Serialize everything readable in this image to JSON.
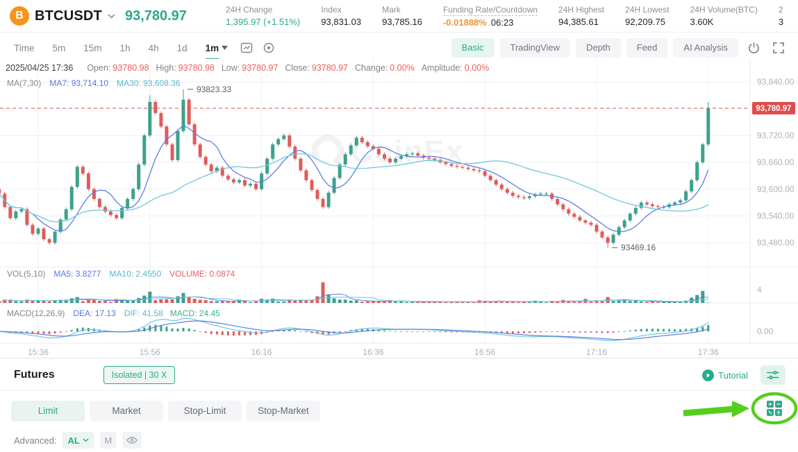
{
  "header": {
    "symbol": "BTCUSDT",
    "price": "93,780.97",
    "stats": [
      {
        "label": "24H Change",
        "value": "1,395.97 (+1.51%)"
      },
      {
        "label": "Index",
        "value": "93,831.03"
      },
      {
        "label": "Mark",
        "value": "93,785.16"
      },
      {
        "label": "Funding Rate/Countdown",
        "rate": "-0.01888%",
        "countdown": "06:23"
      },
      {
        "label": "24H Highest",
        "value": "94,385.61"
      },
      {
        "label": "24H Lowest",
        "value": "92,209.75"
      },
      {
        "label": "24H Volume(BTC)",
        "value": "3.60K"
      },
      {
        "label": "2",
        "value": "3"
      }
    ]
  },
  "toolbar": {
    "intervals": [
      "Time",
      "5m",
      "15m",
      "1h",
      "4h",
      "1d",
      "1m"
    ],
    "active_interval": "1m",
    "views": [
      "Basic",
      "TradingView",
      "Depth",
      "Feed",
      "AI Analysis"
    ],
    "active_view": "Basic"
  },
  "ohlc": {
    "datetime": "2025/04/25 17:36",
    "items": [
      {
        "k": "Open:",
        "v": "93780.98"
      },
      {
        "k": "High:",
        "v": "93780.98"
      },
      {
        "k": "Low:",
        "v": "93780.97"
      },
      {
        "k": "Close:",
        "v": "93780.97"
      },
      {
        "k": "Change:",
        "v": "0.00%"
      },
      {
        "k": "Amplitude:",
        "v": "0.00%"
      }
    ]
  },
  "ma_row": {
    "name": "MA(7,30)",
    "ma7": "MA7: 93,714.10",
    "ma30": "MA30: 93,608.36"
  },
  "vol_row": {
    "name": "VOL(5,10)",
    "ma5": "MA5: 3.8277",
    "ma10": "MA10: 2.4550",
    "vol": "VOLUME: 0.0874"
  },
  "macd_row": {
    "name": "MACD(12,26,9)",
    "dea": "DEA: 17.13",
    "dif": "DIF: 41.58",
    "macd": "MACD: 24.45"
  },
  "chart_data": {
    "type": "candlestick",
    "interval": "1m",
    "x_ticks": [
      "15:36",
      "15:56",
      "16:16",
      "16:36",
      "16:56",
      "17:16",
      "17:36"
    ],
    "price_ticks": [
      "93,840.00",
      "93,720.00",
      "93,660.00",
      "93,600.00",
      "93,540.00",
      "93,480.00"
    ],
    "price_tick_values": [
      93840,
      93720,
      93660,
      93600,
      93540,
      93480
    ],
    "last_price": 93780.97,
    "last_price_label": "93,780.97",
    "high_annotation": {
      "index": 33,
      "price": 93823.33,
      "label": "93823.33"
    },
    "low_annotation": {
      "index": 109,
      "price": 93469.16,
      "label": "93469.16"
    },
    "first_open": 93600,
    "closes": [
      93590,
      93560,
      93535,
      93550,
      93555,
      93520,
      93500,
      93512,
      93488,
      93480,
      93505,
      93532,
      93555,
      93605,
      93650,
      93635,
      93600,
      93578,
      93560,
      93550,
      93542,
      93535,
      93558,
      93578,
      93600,
      93655,
      93720,
      93795,
      93770,
      93740,
      93700,
      93665,
      93730,
      93800,
      93745,
      93700,
      93672,
      93655,
      93640,
      93648,
      93630,
      93622,
      93615,
      93620,
      93608,
      93612,
      93600,
      93635,
      93668,
      93700,
      93712,
      93720,
      93695,
      93668,
      93642,
      93620,
      93598,
      93578,
      93560,
      93592,
      93625,
      93655,
      93678,
      93698,
      93715,
      93705,
      93696,
      93690,
      93678,
      93668,
      93660,
      93668,
      93674,
      93678,
      93680,
      93675,
      93670,
      93668,
      93665,
      93660,
      93656,
      93652,
      93650,
      93648,
      93645,
      93642,
      93640,
      93630,
      93620,
      93610,
      93600,
      93592,
      93585,
      93582,
      93580,
      93584,
      93588,
      93590,
      93590,
      93578,
      93566,
      93555,
      93545,
      93538,
      93530,
      93525,
      93520,
      93505,
      93492,
      93480,
      93498,
      93515,
      93530,
      93545,
      93558,
      93570,
      93566,
      93562,
      93560,
      93560,
      93566,
      93570,
      93575,
      93595,
      93620,
      93660,
      93700,
      93780.97
    ],
    "volume_overrides": {
      "13": 1.4,
      "14": 1.8,
      "21": 1.2,
      "26": 2.2,
      "27": 3.4,
      "33": 3.0,
      "43": 1.0,
      "49": 1.3,
      "57": 2.0,
      "58": 6.2,
      "59": 2.6,
      "60": 1.4,
      "70": 0.9,
      "86": 0.8,
      "96": 0.7,
      "101": 0.9,
      "105": 1.2,
      "109": 1.8,
      "112": 1.1,
      "124": 1.6,
      "125": 2.4,
      "126": 3.6,
      "127": 0.0874
    },
    "vol_axis_label": "4",
    "macd_axis_label": "0.00",
    "watermark": "CoinEx"
  },
  "futures": {
    "title": "Futures",
    "margin_badge": "Isolated | 30 X",
    "tutorial": "Tutorial",
    "order_tabs": [
      "Limit",
      "Market",
      "Stop-Limit",
      "Stop-Market"
    ],
    "active_tab": "Limit",
    "advanced_label": "Advanced:",
    "advanced_mode": "AL",
    "m_badge": "M"
  },
  "colors": {
    "accent": "#2aa98c",
    "up": "#3da18b",
    "down": "#e05c5c",
    "ma7": "#5b7fe4",
    "ma30": "#6fc7db",
    "price_badge": "#e04b4b",
    "funding": "#f0943c",
    "annotation_green": "#55ce1d",
    "bitcoin_orange": "#f7931a"
  }
}
